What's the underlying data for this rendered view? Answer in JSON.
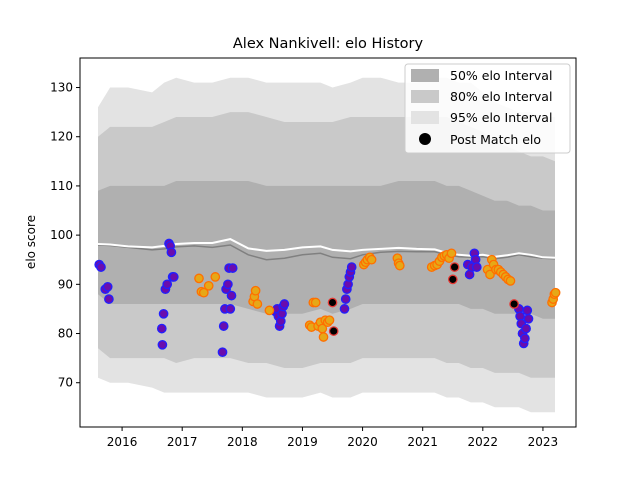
{
  "chart_data": {
    "type": "scatter",
    "title": "Alex Nankivell: elo History",
    "xlabel": "",
    "ylabel": "elo score",
    "xlim": [
      2015.3,
      2023.55
    ],
    "ylim": [
      61,
      136
    ],
    "x_ticks": [
      2016,
      2017,
      2018,
      2019,
      2020,
      2021,
      2022,
      2023
    ],
    "x_tick_labels": [
      "2016",
      "2017",
      "2018",
      "2019",
      "2020",
      "2021",
      "2022",
      "2023"
    ],
    "y_ticks": [
      70,
      80,
      90,
      100,
      110,
      120,
      130
    ],
    "y_tick_labels": [
      "70",
      "80",
      "90",
      "100",
      "110",
      "120",
      "130"
    ],
    "legend_position": "top-right",
    "legend": {
      "i50": "50% elo Interval",
      "i80": "80% elo Interval",
      "i95": "95% elo Interval",
      "post": "Post Match elo"
    },
    "colors": {
      "i50": "#b0b0b0",
      "i80": "#c9c9c9",
      "i95": "#e3e3e3",
      "mean_line": "#ffffff",
      "median_line": "#808080",
      "win_fill": "#6a0dad",
      "win_edge": "#2020ff",
      "loss_fill": "#e6a817",
      "loss_edge": "#ff6f00",
      "neutral_fill": "#000000",
      "neutral_edge": "#e53935"
    },
    "bands": {
      "x": [
        2015.6,
        2015.8,
        2016.1,
        2016.5,
        2016.7,
        2016.9,
        2017.2,
        2017.5,
        2017.8,
        2018.1,
        2018.4,
        2018.7,
        2019.0,
        2019.3,
        2019.5,
        2019.8,
        2020.0,
        2020.3,
        2020.6,
        2020.9,
        2021.2,
        2021.4,
        2021.6,
        2021.8,
        2022.0,
        2022.2,
        2022.4,
        2022.6,
        2022.8,
        2023.0,
        2023.2
      ],
      "p95_hi": [
        126,
        130,
        130,
        129,
        131,
        132,
        131,
        131,
        132,
        132,
        131,
        131,
        131,
        131,
        130,
        131,
        132,
        132,
        131,
        131,
        132,
        132,
        131,
        131,
        129,
        127,
        126,
        125,
        125,
        124,
        124
      ],
      "p80_hi": [
        120,
        122,
        122,
        122,
        123,
        124,
        124,
        124,
        125,
        125,
        124,
        123,
        123,
        123,
        123,
        124,
        124,
        124,
        124,
        124,
        124,
        124,
        123,
        122,
        121,
        119,
        118,
        117,
        116,
        116,
        115
      ],
      "p50_hi": [
        109,
        110,
        110,
        110,
        110,
        111,
        111,
        111,
        111,
        111,
        110,
        110,
        110,
        110,
        110,
        110,
        110,
        110,
        111,
        111,
        111,
        110,
        110,
        109,
        108,
        107,
        107,
        106,
        106,
        105,
        105
      ],
      "mean": [
        98.2,
        98.1,
        97.7,
        97.5,
        97.8,
        98.2,
        98.4,
        98.4,
        99.2,
        97.3,
        96.8,
        97.0,
        97.5,
        97.7,
        97.0,
        96.7,
        97.0,
        97.2,
        97.4,
        97.2,
        97.1,
        96.4,
        96.0,
        95.8,
        96.0,
        95.6,
        95.9,
        96.3,
        96.0,
        95.5,
        95.4
      ],
      "median": [
        98.0,
        97.9,
        97.5,
        97.0,
        97.2,
        97.6,
        97.8,
        97.5,
        98.0,
        96.0,
        95.0,
        95.3,
        96.0,
        96.3,
        95.5,
        95.2,
        96.0,
        96.5,
        96.7,
        96.6,
        96.6,
        96.0,
        95.6,
        95.5,
        95.6,
        95.2,
        95.5,
        96.0,
        95.6,
        95.3,
        95.2
      ],
      "p50_lo": [
        88,
        86,
        86,
        86,
        86,
        86,
        86,
        86,
        86,
        85,
        84,
        84,
        84,
        85,
        84,
        85,
        86,
        86,
        86,
        86,
        86,
        86,
        86,
        85,
        85,
        84,
        84,
        84,
        84,
        83,
        83
      ],
      "p80_lo": [
        77,
        75,
        75,
        75,
        75,
        74,
        75,
        75,
        75,
        74,
        74,
        73,
        73,
        74,
        74,
        74,
        75,
        75,
        75,
        75,
        75,
        74,
        74,
        73,
        73,
        72,
        72,
        72,
        71,
        71,
        71
      ],
      "p95_lo": [
        71,
        70,
        70,
        69,
        68,
        68,
        68,
        68,
        68,
        68,
        67,
        67,
        67,
        68,
        67,
        67,
        68,
        68,
        68,
        68,
        68,
        67,
        67,
        66,
        66,
        65,
        65,
        65,
        64,
        64,
        64
      ]
    },
    "series": [
      {
        "name": "",
        "kind": "win",
        "points": [
          [
            2015.62,
            94
          ],
          [
            2015.65,
            93.5
          ],
          [
            2015.72,
            89
          ],
          [
            2015.76,
            89.5
          ],
          [
            2015.78,
            87
          ],
          [
            2016.66,
            81
          ],
          [
            2016.67,
            77.7
          ],
          [
            2016.69,
            84
          ],
          [
            2016.72,
            89
          ],
          [
            2016.75,
            90
          ],
          [
            2016.78,
            98.3
          ],
          [
            2016.8,
            97.8
          ],
          [
            2016.82,
            96.5
          ],
          [
            2016.84,
            91.5
          ],
          [
            2016.86,
            91.5
          ],
          [
            2017.67,
            76.2
          ],
          [
            2017.69,
            81.5
          ],
          [
            2017.71,
            85
          ],
          [
            2017.73,
            89
          ],
          [
            2017.76,
            90
          ],
          [
            2017.78,
            93.3
          ],
          [
            2017.8,
            85
          ],
          [
            2017.82,
            87.7
          ],
          [
            2017.84,
            93.3
          ],
          [
            2018.55,
            84.5
          ],
          [
            2018.58,
            85
          ],
          [
            2018.6,
            83.5
          ],
          [
            2018.62,
            81.5
          ],
          [
            2018.64,
            82.5
          ],
          [
            2018.66,
            84
          ],
          [
            2018.68,
            85.5
          ],
          [
            2018.7,
            86
          ],
          [
            2019.7,
            85
          ],
          [
            2019.72,
            87
          ],
          [
            2019.74,
            89
          ],
          [
            2019.76,
            90
          ],
          [
            2019.78,
            91.5
          ],
          [
            2019.8,
            92.5
          ],
          [
            2019.82,
            93.5
          ],
          [
            2021.75,
            94
          ],
          [
            2021.78,
            92
          ],
          [
            2021.82,
            93.5
          ],
          [
            2021.86,
            96.3
          ],
          [
            2021.88,
            95
          ],
          [
            2021.9,
            93.5
          ],
          [
            2022.6,
            85
          ],
          [
            2022.62,
            83.5
          ],
          [
            2022.64,
            82
          ],
          [
            2022.66,
            80
          ],
          [
            2022.68,
            78
          ],
          [
            2022.7,
            79
          ],
          [
            2022.72,
            81
          ],
          [
            2022.74,
            84.7
          ],
          [
            2022.76,
            83
          ]
        ]
      },
      {
        "name": "",
        "kind": "loss",
        "points": [
          [
            2017.28,
            91.2
          ],
          [
            2017.32,
            88.5
          ],
          [
            2017.36,
            88.3
          ],
          [
            2017.44,
            89.7
          ],
          [
            2017.55,
            91.5
          ],
          [
            2018.18,
            86.5
          ],
          [
            2018.2,
            87.5
          ],
          [
            2018.22,
            88.7
          ],
          [
            2018.25,
            86
          ],
          [
            2018.45,
            84.7
          ],
          [
            2019.12,
            81.7
          ],
          [
            2019.15,
            81.3
          ],
          [
            2019.18,
            86.3
          ],
          [
            2019.22,
            86.3
          ],
          [
            2019.26,
            81.5
          ],
          [
            2019.3,
            82.3
          ],
          [
            2019.33,
            81
          ],
          [
            2019.35,
            79.3
          ],
          [
            2019.38,
            82.7
          ],
          [
            2019.42,
            82.3
          ],
          [
            2019.45,
            82.7
          ],
          [
            2020.02,
            94
          ],
          [
            2020.05,
            94.5
          ],
          [
            2020.08,
            95
          ],
          [
            2020.12,
            95.5
          ],
          [
            2020.15,
            95
          ],
          [
            2020.58,
            95.3
          ],
          [
            2020.6,
            94.3
          ],
          [
            2020.62,
            93.8
          ],
          [
            2021.15,
            93.5
          ],
          [
            2021.2,
            93.8
          ],
          [
            2021.24,
            94
          ],
          [
            2021.28,
            94.7
          ],
          [
            2021.32,
            95.5
          ],
          [
            2021.36,
            95.8
          ],
          [
            2021.4,
            96
          ],
          [
            2021.44,
            95.3
          ],
          [
            2021.48,
            96.3
          ],
          [
            2022.08,
            93
          ],
          [
            2022.12,
            92
          ],
          [
            2022.15,
            95
          ],
          [
            2022.18,
            94
          ],
          [
            2022.22,
            93
          ],
          [
            2022.26,
            93
          ],
          [
            2022.3,
            92.5
          ],
          [
            2022.34,
            92
          ],
          [
            2022.38,
            91.5
          ],
          [
            2022.42,
            91
          ],
          [
            2022.46,
            90.7
          ],
          [
            2023.15,
            86.3
          ],
          [
            2023.17,
            87
          ],
          [
            2023.19,
            88
          ],
          [
            2023.21,
            88.3
          ]
        ]
      },
      {
        "name": "",
        "kind": "neutral",
        "points": [
          [
            2019.5,
            86.3
          ],
          [
            2019.52,
            80.5
          ],
          [
            2021.5,
            91
          ],
          [
            2021.53,
            93.5
          ],
          [
            2022.52,
            86
          ]
        ]
      }
    ]
  }
}
